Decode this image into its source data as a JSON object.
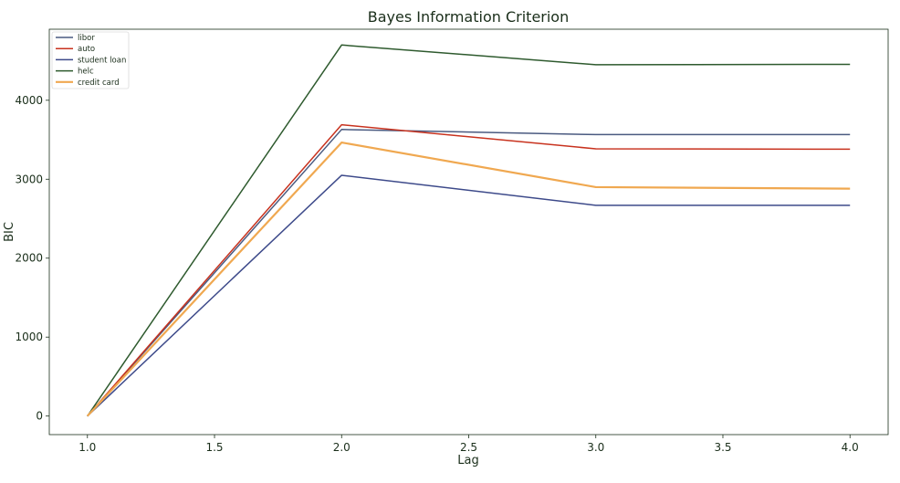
{
  "chart_data": {
    "type": "line",
    "title": "Bayes Information Criterion",
    "xlabel": "Lag",
    "ylabel": "BIC",
    "x": [
      1.0,
      2.0,
      3.0,
      4.0
    ],
    "xlim": [
      0.85,
      4.15
    ],
    "ylim": [
      -235,
      4900
    ],
    "xticks": [
      1.0,
      1.5,
      2.0,
      2.5,
      3.0,
      3.5,
      4.0
    ],
    "xtick_labels": [
      "1.0",
      "1.5",
      "2.0",
      "2.5",
      "3.0",
      "3.5",
      "4.0"
    ],
    "yticks": [
      0,
      1000,
      2000,
      3000,
      4000
    ],
    "ytick_labels": [
      "0",
      "1000",
      "2000",
      "3000",
      "4000"
    ],
    "grid": false,
    "legend_position": "top-left",
    "series": [
      {
        "name": "libor",
        "values": [
          0,
          3630,
          3565,
          3565
        ],
        "color": "#4a5a80"
      },
      {
        "name": "auto",
        "values": [
          0,
          3690,
          3385,
          3380
        ],
        "color": "#c8321e"
      },
      {
        "name": "student loan",
        "values": [
          0,
          3050,
          2670,
          2670
        ],
        "color": "#3d4a8a"
      },
      {
        "name": "helc",
        "values": [
          0,
          4700,
          4450,
          4455
        ],
        "color": "#2e5a2e"
      },
      {
        "name": "credit card",
        "values": [
          0,
          3465,
          2900,
          2880
        ],
        "color": "#f0a850"
      }
    ]
  }
}
